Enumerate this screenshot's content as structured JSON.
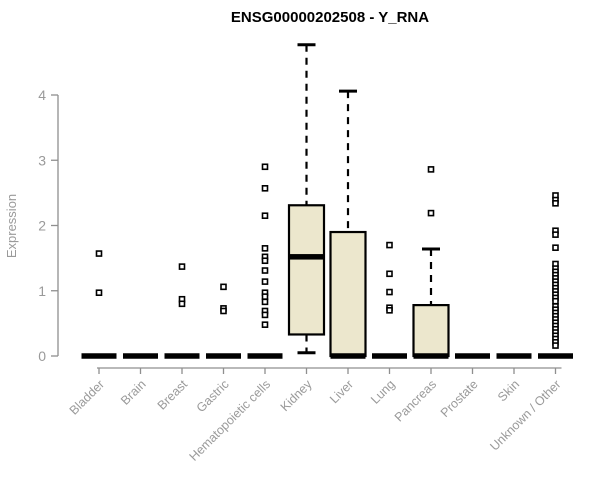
{
  "title": "ENSG00000202508 - Y_RNA",
  "colors": {
    "background": "#ffffff",
    "box_fill": "#ece7cd",
    "box_stroke": "#000000",
    "median": "#000000",
    "outlier_stroke": "#000000",
    "outlier_fill": "#ffffff",
    "axis_line": "#8f8f8f",
    "tick_label": "#9a9a9a",
    "title_color": "#000000"
  },
  "chart_data": {
    "type": "boxplot",
    "title": "ENSG00000202508 - Y_RNA",
    "xlabel": "",
    "ylabel": "Expression",
    "ylim": [
      0,
      4
    ],
    "yticks": [
      0,
      1,
      2,
      3,
      4
    ],
    "grid": false,
    "categories": [
      "Bladder",
      "Brain",
      "Breast",
      "Gastric",
      "Hematopoietic cells",
      "Kidney",
      "Liver",
      "Lung",
      "Pancreas",
      "Prostate",
      "Skin",
      "Unknown / Other"
    ],
    "series": [
      {
        "category": "Bladder",
        "q1": 0,
        "median": 0,
        "q3": 0,
        "whisker_low": 0,
        "whisker_high": 0,
        "outliers": [
          1.57,
          0.97
        ]
      },
      {
        "category": "Brain",
        "q1": 0,
        "median": 0,
        "q3": 0,
        "whisker_low": 0,
        "whisker_high": 0,
        "outliers": []
      },
      {
        "category": "Breast",
        "q1": 0,
        "median": 0,
        "q3": 0,
        "whisker_low": 0,
        "whisker_high": 0,
        "outliers": [
          1.37,
          0.87,
          0.8
        ]
      },
      {
        "category": "Gastric",
        "q1": 0,
        "median": 0,
        "q3": 0,
        "whisker_low": 0,
        "whisker_high": 0,
        "outliers": [
          1.06,
          0.73,
          0.69
        ]
      },
      {
        "category": "Hematopoietic cells",
        "q1": 0,
        "median": 0,
        "q3": 0,
        "whisker_low": 0,
        "whisker_high": 0,
        "outliers": [
          2.9,
          2.57,
          2.15,
          1.65,
          1.52,
          1.46,
          1.31,
          1.14,
          0.97,
          0.91,
          0.83,
          0.69,
          0.63,
          0.48
        ]
      },
      {
        "category": "Kidney",
        "q1": 0.33,
        "median": 1.52,
        "q3": 2.31,
        "whisker_low": 0.05,
        "whisker_high": 4.77,
        "outliers": []
      },
      {
        "category": "Liver",
        "q1": 0,
        "median": 0,
        "q3": 1.9,
        "whisker_low": 0,
        "whisker_high": 4.06,
        "outliers": []
      },
      {
        "category": "Lung",
        "q1": 0,
        "median": 0,
        "q3": 0,
        "whisker_low": 0,
        "whisker_high": 0,
        "outliers": [
          1.7,
          1.26,
          0.98,
          0.74,
          0.7
        ]
      },
      {
        "category": "Pancreas",
        "q1": 0,
        "median": 0,
        "q3": 0.78,
        "whisker_low": 0,
        "whisker_high": 1.64,
        "outliers": [
          2.86,
          2.19
        ]
      },
      {
        "category": "Prostate",
        "q1": 0,
        "median": 0,
        "q3": 0,
        "whisker_low": 0,
        "whisker_high": 0,
        "outliers": []
      },
      {
        "category": "Skin",
        "q1": 0,
        "median": 0,
        "q3": 0,
        "whisker_low": 0,
        "whisker_high": 0,
        "outliers": []
      },
      {
        "category": "Unknown / Other",
        "q1": 0,
        "median": 0,
        "q3": 0,
        "whisker_low": 0,
        "whisker_high": 0,
        "outliers": [
          2.46,
          2.39,
          2.34,
          1.92,
          1.86,
          1.66,
          1.41,
          1.34,
          1.29,
          1.24,
          1.19,
          1.14,
          1.09,
          1.04,
          0.99,
          0.94,
          0.89,
          0.84,
          0.76,
          0.71,
          0.66,
          0.61,
          0.56,
          0.51,
          0.46,
          0.41,
          0.36,
          0.31,
          0.26,
          0.21,
          0.16
        ]
      }
    ]
  }
}
